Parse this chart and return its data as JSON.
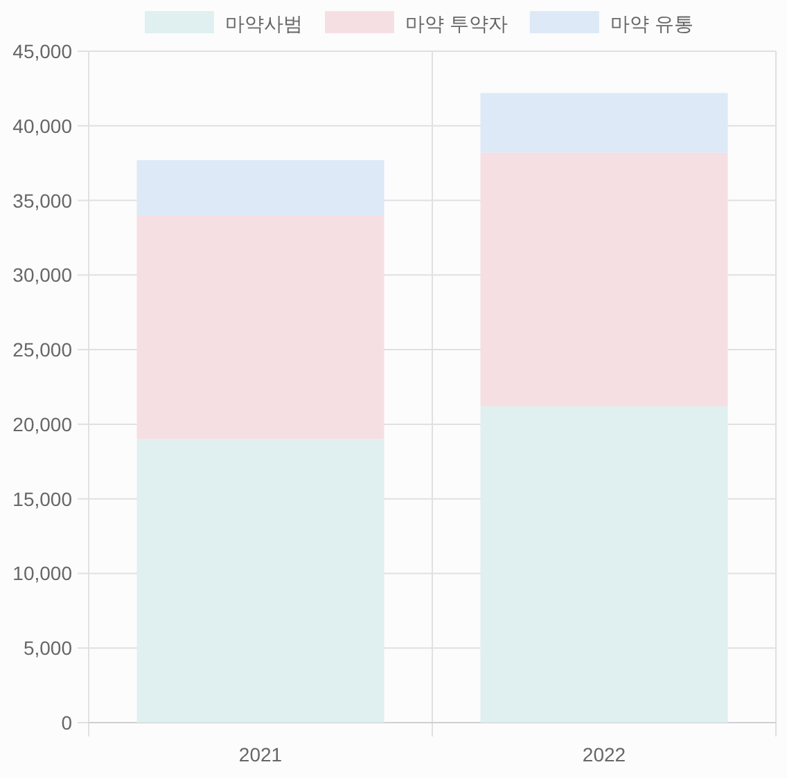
{
  "chart_data": {
    "type": "bar",
    "stacked": true,
    "categories": [
      "2021",
      "2022"
    ],
    "series": [
      {
        "name": "마약사범",
        "color": "#e0efef",
        "values": [
          19000,
          21200
        ]
      },
      {
        "name": "마약 투약자",
        "color": "#f6dfe3",
        "values": [
          15000,
          17000
        ]
      },
      {
        "name": "마약 유통",
        "color": "#dde9f7",
        "values": [
          3700,
          4000
        ]
      }
    ],
    "ylim": [
      0,
      45000
    ],
    "yticks": [
      {
        "value": 0,
        "label": "0"
      },
      {
        "value": 5000,
        "label": "5,000"
      },
      {
        "value": 10000,
        "label": "10,000"
      },
      {
        "value": 15000,
        "label": "15,000"
      },
      {
        "value": 20000,
        "label": "20,000"
      },
      {
        "value": 25000,
        "label": "25,000"
      },
      {
        "value": 30000,
        "label": "30,000"
      },
      {
        "value": 35000,
        "label": "35,000"
      },
      {
        "value": 40000,
        "label": "40,000"
      },
      {
        "value": 45000,
        "label": "45,000"
      }
    ],
    "grid": true,
    "legend": "top"
  }
}
